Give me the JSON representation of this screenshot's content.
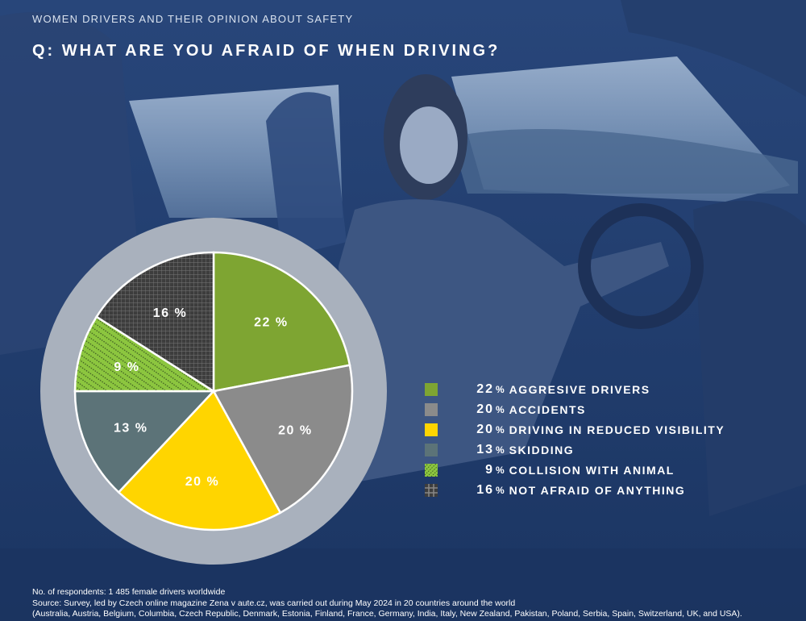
{
  "header": {
    "kicker": "WOMEN DRIVERS AND THEIR OPINION ABOUT SAFETY",
    "question": "Q:  WHAT ARE YOU AFRAID OF WHEN DRIVING?"
  },
  "colors": {
    "background": "#1f3b6b",
    "ring": "#a9b1bd",
    "aggressive": "#7ea532",
    "accidents": "#8b8b8b",
    "visibility": "#ffd500",
    "skidding": "#5c7378",
    "animal": "#8cc63f",
    "nothing": "#3d3d3d"
  },
  "chart_data": {
    "type": "pie",
    "title": "Q:  WHAT ARE YOU AFRAID OF WHEN DRIVING?",
    "unit": "%",
    "categories": [
      "AGGRESIVE DRIVERS",
      "ACCIDENTS",
      "DRIVING IN REDUCED VISIBILITY",
      "SKIDDING",
      "COLLISION WITH ANIMAL",
      "NOT AFRAID OF ANYTHING"
    ],
    "values": [
      22,
      20,
      20,
      13,
      9,
      16
    ],
    "data_labels": [
      "22 %",
      "20 %",
      "20 %",
      "13 %",
      "9 %",
      "16 %"
    ],
    "legend_position": "right",
    "slices": [
      {
        "label": "AGGRESIVE DRIVERS",
        "value": 22,
        "color": "#7ea532",
        "pattern": "solid"
      },
      {
        "label": "ACCIDENTS",
        "value": 20,
        "color": "#8b8b8b",
        "pattern": "solid"
      },
      {
        "label": "DRIVING IN REDUCED VISIBILITY",
        "value": 20,
        "color": "#ffd500",
        "pattern": "solid"
      },
      {
        "label": "SKIDDING",
        "value": 13,
        "color": "#5c7378",
        "pattern": "solid"
      },
      {
        "label": "COLLISION WITH ANIMAL",
        "value": 9,
        "color": "#8cc63f",
        "pattern": "dots"
      },
      {
        "label": "NOT AFRAID OF ANYTHING",
        "value": 16,
        "color": "#3d3d3d",
        "pattern": "grid"
      }
    ]
  },
  "legend": {
    "items": [
      {
        "value": "22",
        "pct": "%",
        "label": "AGGRESIVE DRIVERS"
      },
      {
        "value": "20",
        "pct": "%",
        "label": "ACCIDENTS"
      },
      {
        "value": "20",
        "pct": "%",
        "label": "DRIVING IN REDUCED VISIBILITY"
      },
      {
        "value": "13",
        "pct": "%",
        "label": "SKIDDING"
      },
      {
        "value": "9",
        "pct": "%",
        "label": "COLLISION WITH ANIMAL"
      },
      {
        "value": "16",
        "pct": "%",
        "label": "NOT AFRAID OF ANYTHING"
      }
    ]
  },
  "footer": {
    "line1": "No. of respondents: 1 485 female drivers worldwide",
    "line2": "Source: Survey, led by Czech online magazine Zena v aute.cz, was carried out during May 2024 in 20 countries around the world",
    "line3": "(Australia, Austria, Belgium, Columbia, Czech Republic, Denmark, Estonia, Finland, France, Germany, India, Italy, New Zealand, Pakistan, Poland, Serbia, Spain, Switzerland, UK, and USA)."
  }
}
